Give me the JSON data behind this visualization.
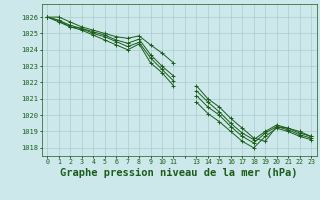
{
  "background_color": "#cce8ea",
  "grid_color": "#aacccc",
  "line_color": "#1a5c1a",
  "marker_color": "#1a5c1a",
  "title": "Graphe pression niveau de la mer (hPa)",
  "title_fontsize": 7.5,
  "title_color": "#1a5c1a",
  "ylim": [
    1017.5,
    1026.8
  ],
  "xlim": [
    -0.5,
    23.5
  ],
  "yticks": [
    1018,
    1019,
    1020,
    1021,
    1022,
    1023,
    1024,
    1025,
    1026
  ],
  "xtick_labels": [
    "0",
    "1",
    "2",
    "3",
    "4",
    "5",
    "6",
    "7",
    "8",
    "9",
    "10",
    "11",
    "",
    "13",
    "14",
    "15",
    "16",
    "17",
    "18",
    "19",
    "20",
    "21",
    "22",
    "23"
  ],
  "series": [
    [
      1026.0,
      1026.0,
      1025.7,
      1025.4,
      1025.2,
      1025.0,
      1024.8,
      1024.7,
      1024.85,
      1024.3,
      1023.8,
      1023.2,
      null,
      1021.8,
      1021.0,
      1020.5,
      1019.8,
      1019.2,
      1018.6,
      1018.4,
      1019.3,
      1019.2,
      1018.9,
      1018.7
    ],
    [
      1026.0,
      1025.8,
      1025.5,
      1025.3,
      1025.1,
      1024.9,
      1024.6,
      1024.4,
      1024.65,
      1023.7,
      1023.0,
      1022.4,
      null,
      1021.5,
      1020.8,
      1020.2,
      1019.5,
      1018.9,
      1018.5,
      1019.0,
      1019.4,
      1019.2,
      1019.0,
      1018.7
    ],
    [
      1026.0,
      1025.8,
      1025.4,
      1025.3,
      1025.0,
      1024.8,
      1024.5,
      1024.2,
      1024.45,
      1023.5,
      1022.8,
      1022.1,
      null,
      1021.2,
      1020.5,
      1020.0,
      1019.3,
      1018.7,
      1018.3,
      1018.9,
      1019.3,
      1019.1,
      1018.8,
      1018.6
    ],
    [
      1026.0,
      1025.7,
      1025.4,
      1025.2,
      1024.9,
      1024.6,
      1024.3,
      1024.0,
      1024.35,
      1023.2,
      1022.6,
      1021.8,
      null,
      1020.8,
      1020.1,
      1019.6,
      1019.0,
      1018.4,
      1018.0,
      1018.7,
      1019.2,
      1019.0,
      1018.7,
      1018.5
    ]
  ]
}
